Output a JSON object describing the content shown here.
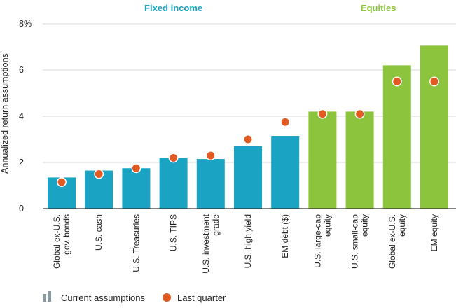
{
  "chart_data": {
    "type": "bar",
    "ylabel": "Annualized return assumptions",
    "ylim": [
      0,
      8
    ],
    "yticks": [
      "0",
      "2",
      "4",
      "6",
      "8%"
    ],
    "grid": true,
    "groups": [
      {
        "label": "Fixed income",
        "color": "#1aa3c2",
        "categories": [
          0,
          1,
          2,
          3,
          4,
          5,
          6
        ]
      },
      {
        "label": "Equities",
        "color": "#8cc43e",
        "categories": [
          7,
          8,
          9,
          10
        ]
      }
    ],
    "categories": [
      [
        "Global ex-U.S.",
        "gov. bonds"
      ],
      [
        "U.S. cash"
      ],
      [
        "U.S. Treasuries"
      ],
      [
        "U.S. TIPS"
      ],
      [
        "U.S. investment",
        "grade"
      ],
      [
        "U.S. high yield"
      ],
      [
        "EM debt ($)"
      ],
      [
        "U.S. large-cap",
        "equity"
      ],
      [
        "U.S. small-cap",
        "equity"
      ],
      [
        "Global ex-U.S.",
        "equity"
      ],
      [
        "EM equity"
      ]
    ],
    "series": [
      {
        "name": "Current assumptions",
        "kind": "bar",
        "values": [
          1.35,
          1.65,
          1.75,
          2.2,
          2.15,
          2.7,
          3.15,
          4.2,
          4.2,
          6.2,
          7.05
        ]
      },
      {
        "name": "Last quarter",
        "kind": "dot",
        "color": "#e05a22",
        "values": [
          1.15,
          1.5,
          1.75,
          2.2,
          2.3,
          3.0,
          3.75,
          4.1,
          4.1,
          5.5,
          5.5
        ]
      }
    ],
    "legend": {
      "placement": "bottom-left",
      "bar_icon_color": "#8a9aa3"
    }
  }
}
